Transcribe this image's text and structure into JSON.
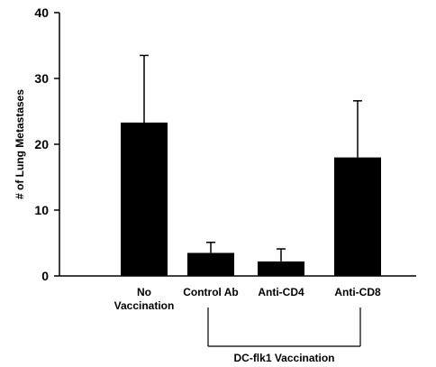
{
  "chart_data": {
    "type": "bar",
    "title": "",
    "xlabel": "",
    "ylabel": "# of Lung Metastases",
    "ylim": [
      0,
      40
    ],
    "yticks": [
      0,
      10,
      20,
      30,
      40
    ],
    "categories": [
      [
        "No",
        "Vaccination"
      ],
      [
        "Control Ab"
      ],
      [
        "Anti-CD4"
      ],
      [
        "Anti-CD8"
      ]
    ],
    "values": [
      23.3,
      3.5,
      2.2,
      18.0
    ],
    "error_upper": [
      33.5,
      5.1,
      4.1,
      26.6
    ],
    "group_label": "DC-flk1 Vaccination",
    "group_span": [
      1,
      3
    ],
    "bar_color": "#000000",
    "grid": false
  }
}
